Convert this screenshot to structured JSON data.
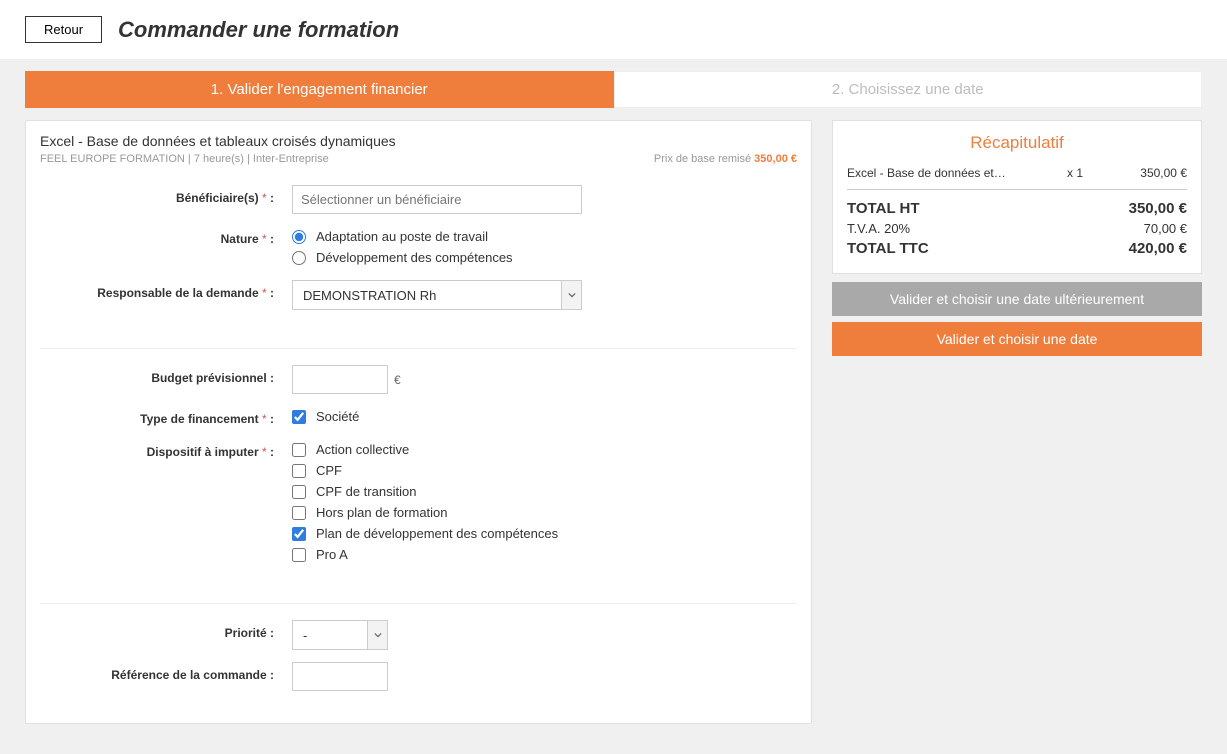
{
  "header": {
    "back_label": "Retour",
    "title": "Commander une formation"
  },
  "tabs": {
    "step1": "1. Valider l'engagement financier",
    "step2": "2. Choisissez une date"
  },
  "training": {
    "title": "Excel - Base de données et tableaux croisés dynamiques",
    "subtitle": "FEEL EUROPE FORMATION | 7 heure(s) | Inter-Entreprise",
    "price_label": "Prix de base remisé",
    "price_value": "350,00 €"
  },
  "form": {
    "beneficiary_label": "Bénéficiaire(s)",
    "beneficiary_placeholder": "Sélectionner un bénéficiaire",
    "nature_label": "Nature",
    "nature_opt1": "Adaptation au poste de travail",
    "nature_opt2": "Développement des compétences",
    "responsible_label": "Responsable de la demande",
    "responsible_value": "DEMONSTRATION Rh",
    "budget_label": "Budget prévisionnel :",
    "budget_suffix": "€",
    "financing_label": "Type de financement",
    "financing_opt1": "Société",
    "device_label": "Dispositif à imputer",
    "device_opts": [
      {
        "label": "Action collective",
        "checked": false
      },
      {
        "label": "CPF",
        "checked": false
      },
      {
        "label": "CPF de transition",
        "checked": false
      },
      {
        "label": "Hors plan de formation",
        "checked": false
      },
      {
        "label": "Plan de développement des compétences",
        "checked": true
      },
      {
        "label": "Pro A",
        "checked": false
      }
    ],
    "priority_label": "Priorité :",
    "priority_value": "-",
    "reference_label": "Référence de la commande :"
  },
  "recap": {
    "title": "Récapitulatif",
    "item_name": "Excel - Base de données et…",
    "item_qty": "x 1",
    "item_amount": "350,00 €",
    "total_ht_label": "TOTAL HT",
    "total_ht_value": "350,00 €",
    "vat_label": "T.V.A. 20%",
    "vat_value": "70,00 €",
    "total_ttc_label": "TOTAL TTC",
    "total_ttc_value": "420,00 €",
    "btn_later": "Valider et choisir une date ultérieurement",
    "btn_now": "Valider et choisir une date"
  },
  "colors": {
    "accent": "#ef7d3c",
    "grey_btn": "#a9a9a9",
    "blue_accent": "#2f7de1"
  }
}
